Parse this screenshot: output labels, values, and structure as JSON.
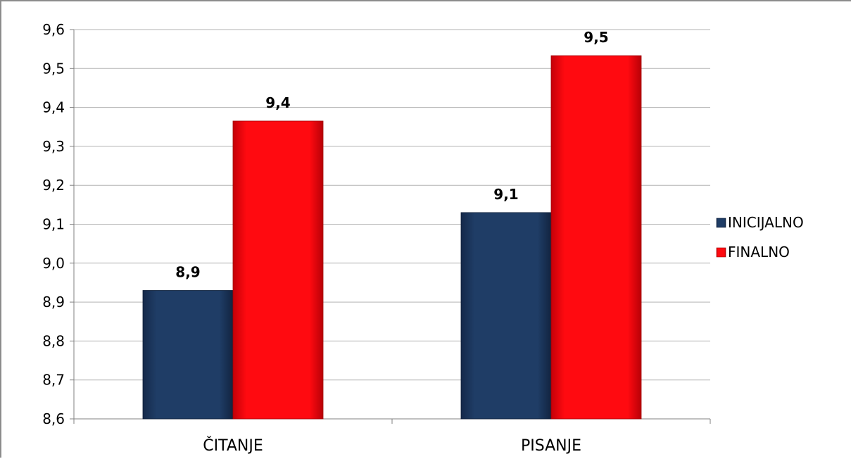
{
  "chart_data": {
    "type": "bar",
    "categories": [
      "ČITANJE",
      "PISANJE"
    ],
    "series": [
      {
        "name": "INICIJALNO",
        "values": [
          8.93,
          9.13
        ],
        "labels": [
          "8,9",
          "9,1"
        ],
        "color": "#1f3864"
      },
      {
        "name": "FINALNO",
        "values": [
          9.365,
          9.533
        ],
        "labels": [
          "9,4",
          "9,5"
        ],
        "color": "#e8000b"
      }
    ],
    "ylim": [
      8.6,
      9.6
    ],
    "yticks": [
      8.6,
      8.7,
      8.8,
      8.9,
      9.0,
      9.1,
      9.2,
      9.3,
      9.4,
      9.5,
      9.6
    ],
    "ytick_labels": [
      "8,6",
      "8,7",
      "8,8",
      "8,9",
      "9,0",
      "9,1",
      "9,2",
      "9,3",
      "9,4",
      "9,5",
      "9,6"
    ],
    "grid": true,
    "legend_position": "right",
    "title": "",
    "xlabel": "",
    "ylabel": ""
  }
}
